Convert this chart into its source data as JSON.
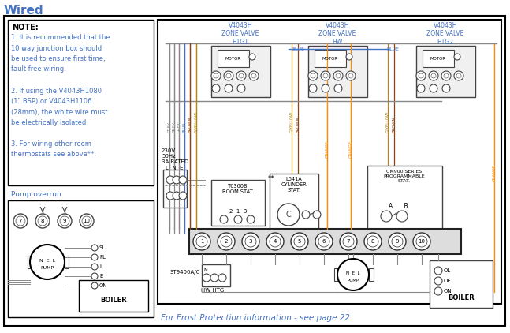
{
  "title": "Wired",
  "bg_color": "#ffffff",
  "title_color": "#4472C4",
  "note_text_color": "#4472C4",
  "valve_label_color": "#4472C4",
  "footer_color": "#4472C4",
  "pump_overrun_color": "#4472C4",
  "wire_gray": "#888888",
  "wire_blue": "#4472C4",
  "wire_brown": "#8B4513",
  "wire_gyellow": "#B8860B",
  "wire_orange": "#FF8C00",
  "footer_text": "For Frost Protection information - see page 22",
  "valve1_label": "V4043H\nZONE VALVE\nHTG1",
  "valve2_label": "V4043H\nZONE VALVE\nHW",
  "valve3_label": "V4043H\nZONE VALVE\nHTG2",
  "pump_overrun_label": "Pump overrun",
  "boiler_label": "BOILER",
  "t6360b_label": "T6360B\nROOM STAT.",
  "l641a_label": "L641A\nCYLINDER\nSTAT.",
  "cm900_label": "CM900 SERIES\nPROGRAMMABLE\nSTAT.",
  "power_label": "230V\n50Hz\n3A RATED",
  "lne_label": "L  N  E",
  "st9400_label": "ST9400A/C",
  "hw_htg_label": "HW HTG"
}
